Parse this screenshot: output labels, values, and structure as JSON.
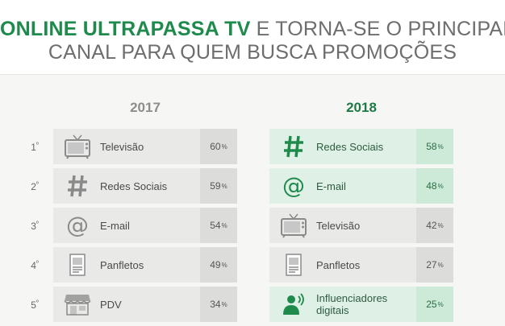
{
  "header": {
    "title_strong": "ONLINE ULTRAPASSA TV",
    "title_rest": "E TORNA-SE O PRINCIPAL",
    "title_line2": "CANAL PARA QUEM BUSCA PROMOÇÕES"
  },
  "ranks": [
    {
      "num": "1",
      "ord": "º"
    },
    {
      "num": "2",
      "ord": "º"
    },
    {
      "num": "3",
      "ord": "º"
    },
    {
      "num": "4",
      "ord": "º"
    },
    {
      "num": "5",
      "ord": "º"
    }
  ],
  "colors": {
    "accent": "#1e8a4c",
    "highlight": "#dff1e6",
    "neutral": "#e9e9e8"
  },
  "chart_data": {
    "type": "table",
    "unit": "%",
    "columns": [
      {
        "year": "2017",
        "rows": [
          {
            "channel": "Televisão",
            "value": 60,
            "icon": "television-icon",
            "highlight": false
          },
          {
            "channel": "Redes Sociais",
            "value": 59,
            "icon": "hashtag-icon",
            "highlight": false
          },
          {
            "channel": "E-mail",
            "value": 54,
            "icon": "at-sign-icon",
            "highlight": false
          },
          {
            "channel": "Panfletos",
            "value": 49,
            "icon": "flyer-icon",
            "highlight": false
          },
          {
            "channel": "PDV",
            "value": 34,
            "icon": "storefront-icon",
            "highlight": false
          }
        ]
      },
      {
        "year": "2018",
        "rows": [
          {
            "channel": "Redes Sociais",
            "value": 58,
            "icon": "hashtag-icon",
            "highlight": true
          },
          {
            "channel": "E-mail",
            "value": 48,
            "icon": "at-sign-icon",
            "highlight": true
          },
          {
            "channel": "Televisão",
            "value": 42,
            "icon": "television-icon",
            "highlight": false
          },
          {
            "channel": "Panfletos",
            "value": 27,
            "icon": "flyer-icon",
            "highlight": false
          },
          {
            "channel": "Influenciadores digitais",
            "value": 25,
            "icon": "influencer-icon",
            "highlight": true
          }
        ]
      }
    ]
  }
}
